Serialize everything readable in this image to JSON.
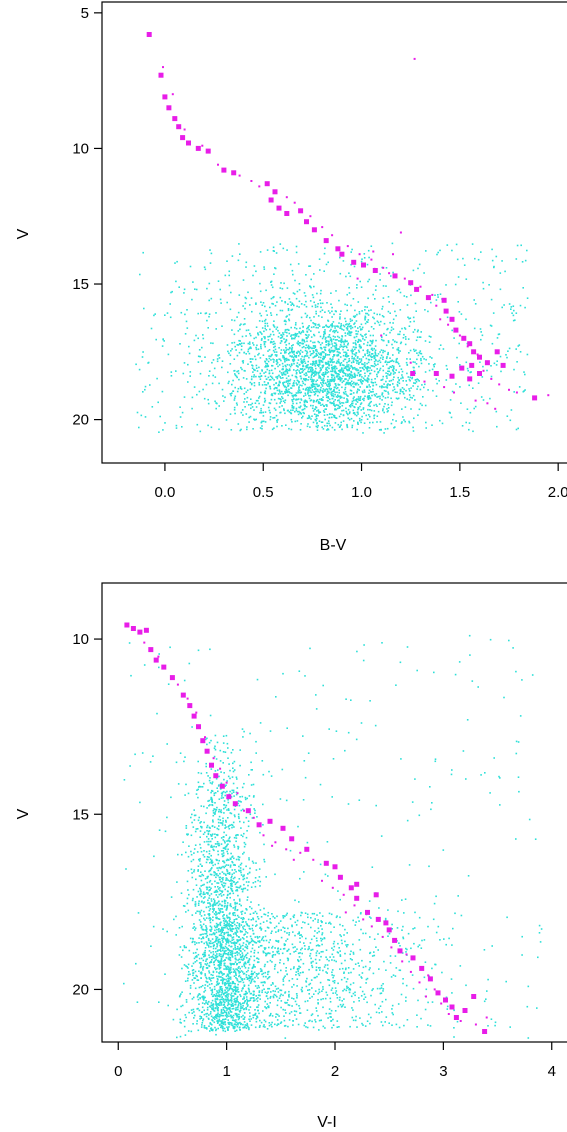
{
  "chart_data": [
    {
      "type": "scatter",
      "xlabel": "B-V",
      "ylabel": "V",
      "xlim": [
        -0.32,
        2.05
      ],
      "ylim": [
        21.6,
        4.6
      ],
      "y_inverted": true,
      "grid": false,
      "x_ticks": [
        "0.0",
        "0.5",
        "1.0",
        "1.5",
        "2.0"
      ],
      "x_tick_values": [
        0.0,
        0.5,
        1.0,
        1.5,
        2.0
      ],
      "y_ticks": [
        "5",
        "10",
        "15",
        "20"
      ],
      "y_tick_values": [
        5,
        10,
        15,
        20
      ],
      "field_cloud": {
        "color": "#2ee0d8",
        "approx_count": 3000,
        "center": [
          0.82,
          18.0
        ],
        "x_range": [
          -0.15,
          1.95
        ],
        "y_range": [
          9.5,
          20.8
        ]
      },
      "series": [
        {
          "marker": "square",
          "color": "#e81de8",
          "points": [
            [
              -0.08,
              5.8
            ],
            [
              -0.02,
              7.3
            ],
            [
              0.0,
              8.1
            ],
            [
              0.02,
              8.5
            ],
            [
              0.05,
              8.9
            ],
            [
              0.07,
              9.2
            ],
            [
              0.09,
              9.6
            ],
            [
              0.12,
              9.8
            ],
            [
              0.17,
              10.0
            ],
            [
              0.22,
              10.1
            ],
            [
              0.3,
              10.8
            ],
            [
              0.35,
              10.9
            ],
            [
              0.52,
              11.3
            ],
            [
              0.56,
              11.6
            ],
            [
              0.54,
              11.9
            ],
            [
              0.58,
              12.2
            ],
            [
              0.62,
              12.4
            ],
            [
              0.69,
              12.3
            ],
            [
              0.72,
              12.7
            ],
            [
              0.76,
              13.0
            ],
            [
              0.82,
              13.4
            ],
            [
              0.88,
              13.7
            ],
            [
              0.9,
              13.9
            ],
            [
              0.96,
              14.2
            ],
            [
              1.01,
              14.3
            ],
            [
              1.07,
              14.5
            ],
            [
              1.17,
              14.7
            ],
            [
              1.25,
              14.95
            ],
            [
              1.28,
              15.2
            ],
            [
              1.34,
              15.5
            ],
            [
              1.42,
              15.6
            ],
            [
              1.43,
              16.0
            ],
            [
              1.46,
              16.3
            ],
            [
              1.48,
              16.7
            ],
            [
              1.52,
              17.0
            ],
            [
              1.55,
              17.2
            ],
            [
              1.57,
              17.5
            ],
            [
              1.6,
              17.7
            ],
            [
              1.64,
              17.9
            ],
            [
              1.56,
              18.0
            ],
            [
              1.51,
              18.1
            ],
            [
              1.6,
              18.3
            ],
            [
              1.46,
              18.4
            ],
            [
              1.69,
              17.5
            ],
            [
              1.72,
              18.0
            ],
            [
              1.38,
              18.3
            ],
            [
              1.26,
              18.3
            ],
            [
              1.88,
              19.2
            ],
            [
              1.55,
              18.5
            ]
          ]
        },
        {
          "marker": "dot",
          "color": "#e81de8",
          "points": [
            [
              -0.01,
              7.0
            ],
            [
              0.04,
              8.0
            ],
            [
              0.1,
              9.3
            ],
            [
              0.19,
              9.9
            ],
            [
              0.27,
              10.6
            ],
            [
              0.38,
              11.0
            ],
            [
              0.44,
              11.2
            ],
            [
              0.48,
              11.4
            ],
            [
              0.62,
              11.8
            ],
            [
              0.66,
              12.0
            ],
            [
              0.74,
              12.5
            ],
            [
              0.8,
              12.9
            ],
            [
              0.85,
              13.2
            ],
            [
              0.93,
              13.6
            ],
            [
              0.99,
              13.9
            ],
            [
              1.05,
              14.1
            ],
            [
              1.11,
              14.4
            ],
            [
              1.14,
              14.6
            ],
            [
              1.22,
              14.8
            ],
            [
              1.3,
              15.1
            ],
            [
              1.36,
              15.4
            ],
            [
              1.38,
              15.8
            ],
            [
              1.4,
              16.3
            ],
            [
              1.44,
              16.5
            ],
            [
              1.5,
              16.9
            ],
            [
              1.54,
              17.3
            ],
            [
              1.59,
              17.6
            ],
            [
              1.62,
              18.2
            ],
            [
              1.66,
              18.5
            ],
            [
              1.7,
              18.7
            ],
            [
              1.75,
              18.9
            ],
            [
              1.79,
              19.0
            ],
            [
              1.95,
              19.1
            ],
            [
              1.27,
              6.7
            ],
            [
              1.1,
              16.9
            ],
            [
              1.25,
              17.9
            ],
            [
              1.32,
              18.6
            ],
            [
              1.58,
              19.3
            ],
            [
              1.64,
              19.4
            ],
            [
              1.68,
              19.6
            ],
            [
              1.47,
              19.0
            ],
            [
              1.42,
              18.8
            ],
            [
              1.2,
              13.1
            ],
            [
              0.98,
              14.8
            ],
            [
              1.06,
              13.8
            ],
            [
              1.16,
              13.9
            ]
          ]
        }
      ]
    },
    {
      "type": "scatter",
      "xlabel": "V-I",
      "ylabel": "V",
      "xlim": [
        -0.15,
        4.15
      ],
      "ylim": [
        21.5,
        8.4
      ],
      "y_inverted": true,
      "grid": false,
      "x_ticks": [
        "0",
        "1",
        "2",
        "3",
        "4"
      ],
      "x_tick_values": [
        0,
        1,
        2,
        3,
        4
      ],
      "y_ticks": [
        "10",
        "15",
        "20"
      ],
      "y_tick_values": [
        10,
        15,
        20
      ],
      "field_cloud": {
        "color": "#2ee0d8",
        "approx_count": 3300,
        "center": [
          1.05,
          18.6
        ],
        "x_range": [
          0.05,
          3.95
        ],
        "y_range": [
          9.9,
          21.4
        ]
      },
      "series": [
        {
          "marker": "square",
          "color": "#e81de8",
          "points": [
            [
              0.08,
              9.6
            ],
            [
              0.14,
              9.7
            ],
            [
              0.2,
              9.8
            ],
            [
              0.26,
              9.75
            ],
            [
              0.3,
              10.3
            ],
            [
              0.35,
              10.6
            ],
            [
              0.42,
              10.8
            ],
            [
              0.5,
              11.1
            ],
            [
              0.6,
              11.6
            ],
            [
              0.66,
              11.9
            ],
            [
              0.7,
              12.2
            ],
            [
              0.74,
              12.5
            ],
            [
              0.78,
              12.9
            ],
            [
              0.82,
              13.2
            ],
            [
              0.86,
              13.6
            ],
            [
              0.9,
              13.9
            ],
            [
              0.96,
              14.2
            ],
            [
              1.02,
              14.5
            ],
            [
              1.08,
              14.7
            ],
            [
              1.2,
              14.9
            ],
            [
              1.4,
              15.2
            ],
            [
              1.52,
              15.4
            ],
            [
              1.6,
              15.7
            ],
            [
              1.74,
              16.0
            ],
            [
              1.92,
              16.4
            ],
            [
              2.05,
              16.8
            ],
            [
              2.15,
              17.1
            ],
            [
              2.2,
              17.4
            ],
            [
              2.3,
              17.8
            ],
            [
              2.38,
              17.3
            ],
            [
              2.4,
              18.0
            ],
            [
              2.5,
              18.3
            ],
            [
              2.55,
              18.6
            ],
            [
              2.6,
              18.9
            ],
            [
              2.72,
              19.1
            ],
            [
              2.8,
              19.4
            ],
            [
              2.88,
              19.7
            ],
            [
              2.95,
              20.1
            ],
            [
              3.02,
              20.3
            ],
            [
              3.08,
              20.5
            ],
            [
              3.12,
              20.8
            ],
            [
              3.2,
              20.6
            ],
            [
              3.28,
              20.2
            ],
            [
              3.38,
              21.2
            ],
            [
              2.47,
              18.1
            ],
            [
              2.2,
              17.0
            ],
            [
              2.0,
              16.5
            ],
            [
              1.3,
              15.3
            ]
          ]
        },
        {
          "marker": "dot",
          "color": "#e81de8",
          "points": [
            [
              0.24,
              10.1
            ],
            [
              0.37,
              10.5
            ],
            [
              0.55,
              11.3
            ],
            [
              0.64,
              11.7
            ],
            [
              0.72,
              12.1
            ],
            [
              0.8,
              12.8
            ],
            [
              0.88,
              13.4
            ],
            [
              0.94,
              13.7
            ],
            [
              1.0,
              14.1
            ],
            [
              1.1,
              14.4
            ],
            [
              1.16,
              14.9
            ],
            [
              1.25,
              15.1
            ],
            [
              1.34,
              15.6
            ],
            [
              1.45,
              15.8
            ],
            [
              1.55,
              16.0
            ],
            [
              1.68,
              16.1
            ],
            [
              1.8,
              16.3
            ],
            [
              1.88,
              16.9
            ],
            [
              1.98,
              17.1
            ],
            [
              2.08,
              17.3
            ],
            [
              2.18,
              17.6
            ],
            [
              2.26,
              18.0
            ],
            [
              2.34,
              18.2
            ],
            [
              2.44,
              18.5
            ],
            [
              2.52,
              18.8
            ],
            [
              2.62,
              19.2
            ],
            [
              2.7,
              19.5
            ],
            [
              2.78,
              19.8
            ],
            [
              2.86,
              19.6
            ],
            [
              2.92,
              20.0
            ],
            [
              2.98,
              20.4
            ],
            [
              3.05,
              20.7
            ],
            [
              3.16,
              20.9
            ],
            [
              3.3,
              21.0
            ],
            [
              3.4,
              20.8
            ],
            [
              1.42,
              15.9
            ],
            [
              1.62,
              16.3
            ],
            [
              2.1,
              17.8
            ],
            [
              2.66,
              19.0
            ],
            [
              2.84,
              20.2
            ]
          ]
        }
      ]
    }
  ]
}
